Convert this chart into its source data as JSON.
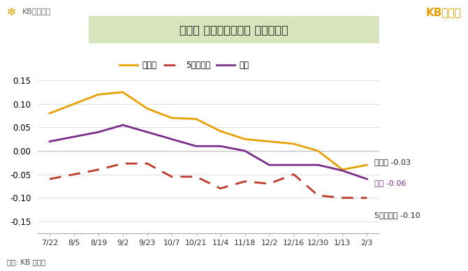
{
  "title": "지역별 아파트매매가격 주간변동률",
  "ylabel": "(%)",
  "source": "자료: KB 부동산",
  "header_left_icon": "* KB국민은행",
  "header_right": "KB부동산",
  "x_labels": [
    "7/22",
    "8/5",
    "8/19",
    "9/2",
    "9/23",
    "10/7",
    "10/21",
    "11/4",
    "11/18",
    "12/2",
    "12/16",
    "12/30",
    "1/13",
    "2/3"
  ],
  "sudokwon": [
    0.08,
    0.1,
    0.12,
    0.125,
    0.09,
    0.07,
    0.068,
    0.042,
    0.025,
    0.02,
    0.015,
    0.0,
    -0.04,
    -0.03
  ],
  "five_cities": [
    -0.06,
    -0.05,
    -0.04,
    -0.027,
    -0.027,
    -0.055,
    -0.055,
    -0.08,
    -0.065,
    -0.07,
    -0.05,
    -0.095,
    -0.1,
    -0.1
  ],
  "jeonkuk": [
    0.02,
    0.03,
    0.04,
    0.055,
    0.04,
    0.025,
    0.01,
    0.01,
    0.0,
    -0.03,
    -0.03,
    -0.03,
    -0.042,
    -0.06
  ],
  "ylim": [
    -0.175,
    0.2
  ],
  "yticks": [
    -0.15,
    -0.1,
    -0.05,
    0.0,
    0.05,
    0.1,
    0.15
  ],
  "color_sudokwon": "#E8A000",
  "color_five": "#C0392B",
  "color_jeonkuk": "#7B2D8B",
  "bg_color": "#FFFFFF",
  "plot_bg": "#FFFFFF",
  "title_bg": "#D8E4BC",
  "legend_sudokwon": "수도권",
  "legend_five": "5개광역시",
  "legend_jeonkuk": "전국",
  "right_label_s": "수도권 -0.03",
  "right_label_f": "5개광역시 -0.10",
  "right_label_j": "전국 -0.06"
}
